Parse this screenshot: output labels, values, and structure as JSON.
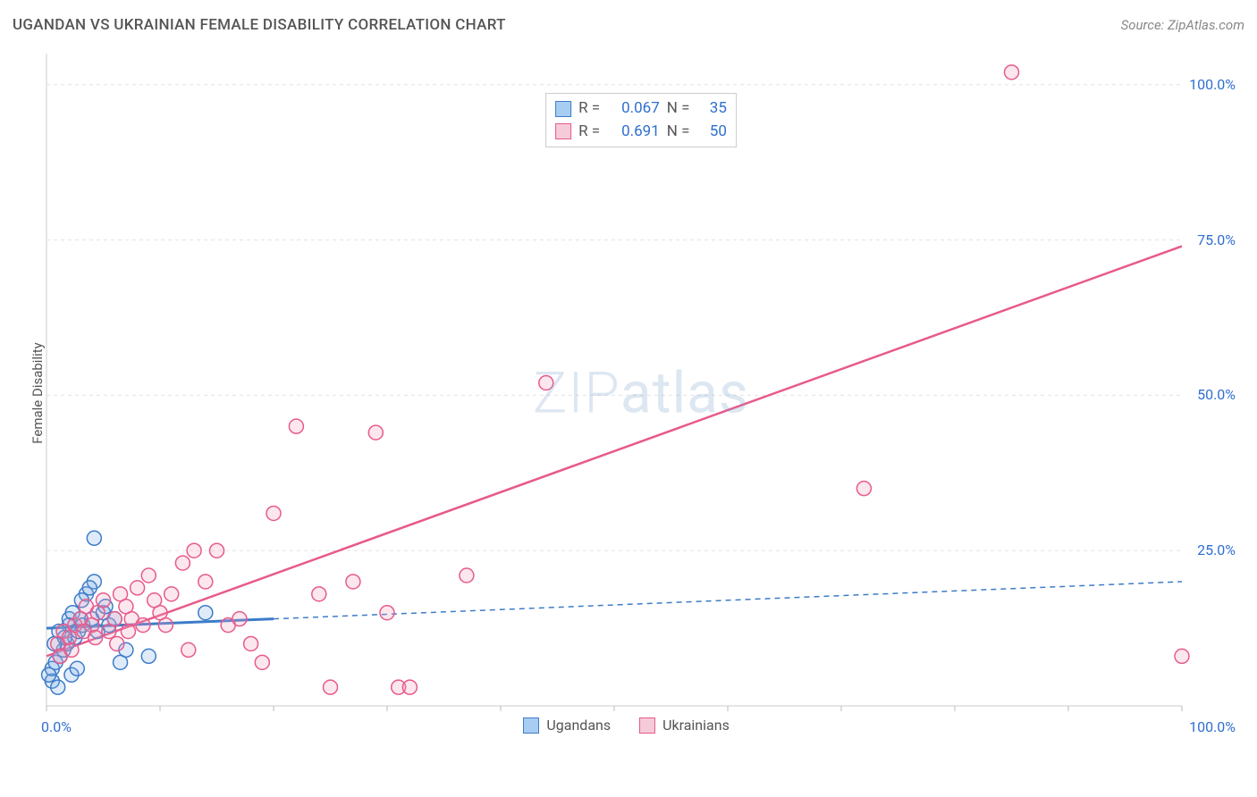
{
  "title": "UGANDAN VS UKRAINIAN FEMALE DISABILITY CORRELATION CHART",
  "source": "Source: ZipAtlas.com",
  "ylabel": "Female Disability",
  "watermark": "ZIPatlas",
  "chart": {
    "type": "scatter",
    "xlim": [
      0,
      100
    ],
    "ylim": [
      0,
      105
    ],
    "xtick_labels": [
      "0.0%",
      "100.0%"
    ],
    "ytick_labels": [
      "25.0%",
      "50.0%",
      "75.0%",
      "100.0%"
    ],
    "background_color": "#ffffff",
    "grid_color": "#e3e3e3",
    "grid_dash": "4,4",
    "axis_line_color": "#cccccc",
    "tick_color": "#bbbbbb",
    "marker_radius": 8,
    "marker_stroke_width": 1.5,
    "marker_fill_opacity": 0.25,
    "series": [
      {
        "name": "Ugandans",
        "color_stroke": "#3d7cc9",
        "color_fill": "#7fb0e6",
        "trend": {
          "x1": 0,
          "y1": 12.5,
          "x2": 100,
          "y2": 20,
          "solid_until_x": 20,
          "dash": "6,5",
          "width_solid": 3,
          "width_dash": 1.5
        },
        "R": "0.067",
        "N": "35",
        "points": [
          [
            0.5,
            4
          ],
          [
            0.5,
            6
          ],
          [
            0.8,
            7
          ],
          [
            1,
            3
          ],
          [
            0.2,
            5
          ],
          [
            1.2,
            8
          ],
          [
            1.5,
            9
          ],
          [
            1.8,
            10
          ],
          [
            2,
            13
          ],
          [
            2,
            14
          ],
          [
            2.3,
            15
          ],
          [
            2.5,
            11
          ],
          [
            2.8,
            12
          ],
          [
            3,
            14
          ],
          [
            3.2,
            13
          ],
          [
            3.5,
            18
          ],
          [
            4,
            14
          ],
          [
            4.2,
            20
          ],
          [
            4.5,
            12
          ],
          [
            5,
            15
          ],
          [
            5.2,
            16
          ],
          [
            5.5,
            13
          ],
          [
            6,
            14
          ],
          [
            6.5,
            7
          ],
          [
            7,
            9
          ],
          [
            2.2,
            5
          ],
          [
            2.7,
            6
          ],
          [
            3.1,
            17
          ],
          [
            3.8,
            19
          ],
          [
            4.2,
            27
          ],
          [
            9,
            8
          ],
          [
            14,
            15
          ],
          [
            0.7,
            10
          ],
          [
            1.1,
            12
          ],
          [
            1.6,
            11
          ]
        ]
      },
      {
        "name": "Ukrainians",
        "color_stroke": "#e75a8c",
        "color_fill": "#f2a0bd",
        "trend": {
          "x1": 0,
          "y1": 8,
          "x2": 100,
          "y2": 74,
          "solid_until_x": 100,
          "dash": "",
          "width_solid": 2.5,
          "width_dash": 0
        },
        "R": "0.691",
        "N": "50",
        "points": [
          [
            1,
            10
          ],
          [
            1.5,
            12
          ],
          [
            2,
            11
          ],
          [
            2.5,
            13
          ],
          [
            3,
            14
          ],
          [
            3.5,
            16
          ],
          [
            4,
            13
          ],
          [
            4.5,
            15
          ],
          [
            5,
            17
          ],
          [
            5.5,
            12
          ],
          [
            6,
            14
          ],
          [
            6.5,
            18
          ],
          [
            7,
            16
          ],
          [
            7.5,
            14
          ],
          [
            8,
            19
          ],
          [
            8.5,
            13
          ],
          [
            9,
            21
          ],
          [
            9.5,
            17
          ],
          [
            10,
            15
          ],
          [
            11,
            18
          ],
          [
            12,
            23
          ],
          [
            12.5,
            9
          ],
          [
            13,
            25
          ],
          [
            14,
            20
          ],
          [
            15,
            25
          ],
          [
            16,
            13
          ],
          [
            17,
            14
          ],
          [
            18,
            10
          ],
          [
            19,
            7
          ],
          [
            20,
            31
          ],
          [
            22,
            45
          ],
          [
            24,
            18
          ],
          [
            25,
            3
          ],
          [
            27,
            20
          ],
          [
            29,
            44
          ],
          [
            30,
            15
          ],
          [
            31,
            3
          ],
          [
            32,
            3
          ],
          [
            37,
            21
          ],
          [
            44,
            52
          ],
          [
            1.2,
            8
          ],
          [
            2.2,
            9
          ],
          [
            3.3,
            12
          ],
          [
            4.3,
            11
          ],
          [
            6.2,
            10
          ],
          [
            7.2,
            12
          ],
          [
            10.5,
            13
          ],
          [
            72,
            35
          ],
          [
            85,
            102
          ],
          [
            100,
            8
          ]
        ]
      }
    ]
  },
  "legend_top_labels": {
    "R": "R =",
    "N": "N ="
  },
  "legend_bottom_labels": [
    "Ugandans",
    "Ukrainians"
  ],
  "legend_swatch": {
    "ugandan_fill": "#a8cdf2",
    "ugandan_stroke": "#3d7cc9",
    "ukrainian_fill": "#f6cbd9",
    "ukrainian_stroke": "#e75a8c"
  }
}
